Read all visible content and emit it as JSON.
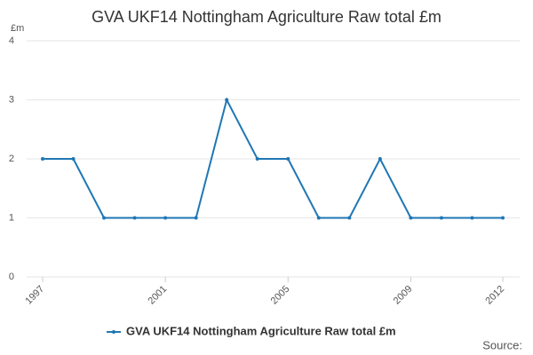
{
  "chart_data": {
    "type": "line",
    "title": "GVA UKF14 Nottingham Agriculture Raw total £m",
    "y_unit": "£m",
    "x": [
      1997,
      1998,
      1999,
      2000,
      2001,
      2002,
      2003,
      2004,
      2005,
      2006,
      2007,
      2008,
      2009,
      2010,
      2011,
      2012
    ],
    "series": [
      {
        "name": "GVA UKF14 Nottingham Agriculture Raw total £m",
        "color": "#1f77b4",
        "values": [
          2,
          2,
          1,
          1,
          1,
          1,
          3,
          2,
          2,
          1,
          1,
          2,
          1,
          1,
          1,
          1
        ]
      }
    ],
    "xlim": [
      1997,
      2012
    ],
    "xticks": [
      1997,
      2001,
      2005,
      2009,
      2012
    ],
    "ylim": [
      0,
      4
    ],
    "yticks": [
      0,
      1,
      2,
      3,
      4
    ],
    "grid": true,
    "source": "Source:"
  }
}
